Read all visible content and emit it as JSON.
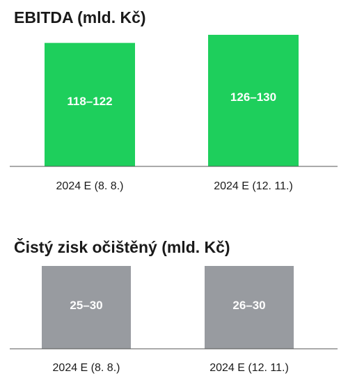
{
  "chart_data": [
    {
      "type": "bar",
      "title": "EBITDA (mld. Kč)",
      "categories": [
        "2024 E (8. 8.)",
        "2024 E (12. 11.)"
      ],
      "ranges": [
        [
          118,
          122
        ],
        [
          126,
          130
        ]
      ],
      "value_labels": [
        "118–122",
        "126–130"
      ],
      "color": "#1ecf5c",
      "ylim": [
        0,
        135
      ],
      "grid": false
    },
    {
      "type": "bar",
      "title": "Čistý zisk očištěný (mld. Kč)",
      "categories": [
        "2024 E (8. 8.)",
        "2024 E (12. 11.)"
      ],
      "ranges": [
        [
          25,
          30
        ],
        [
          26,
          30
        ]
      ],
      "value_labels": [
        "25–30",
        "26–30"
      ],
      "color": "#989ba0",
      "ylim": [
        0,
        33
      ],
      "grid": false
    }
  ]
}
